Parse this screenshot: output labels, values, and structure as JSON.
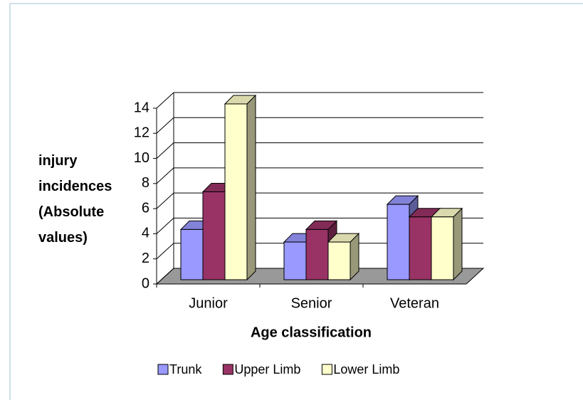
{
  "chart_data": {
    "type": "bar3d",
    "x_label": "Age classification",
    "y_label": "injury incidences (Absolute values)",
    "categories": [
      "Junior",
      "Senior",
      "Veteran"
    ],
    "series": [
      {
        "name": "Trunk",
        "color": "#9999ff",
        "values": [
          4,
          3,
          6
        ]
      },
      {
        "name": "Upper Limb",
        "color": "#993366",
        "values": [
          7,
          4,
          5
        ]
      },
      {
        "name": "Lower Limb",
        "color": "#ffffcc",
        "values": [
          14,
          3,
          5
        ]
      }
    ],
    "ylim": [
      0,
      14
    ],
    "yticks": [
      0,
      2,
      4,
      6,
      8,
      10,
      12,
      14
    ],
    "grid": true,
    "legend": "bottom"
  }
}
